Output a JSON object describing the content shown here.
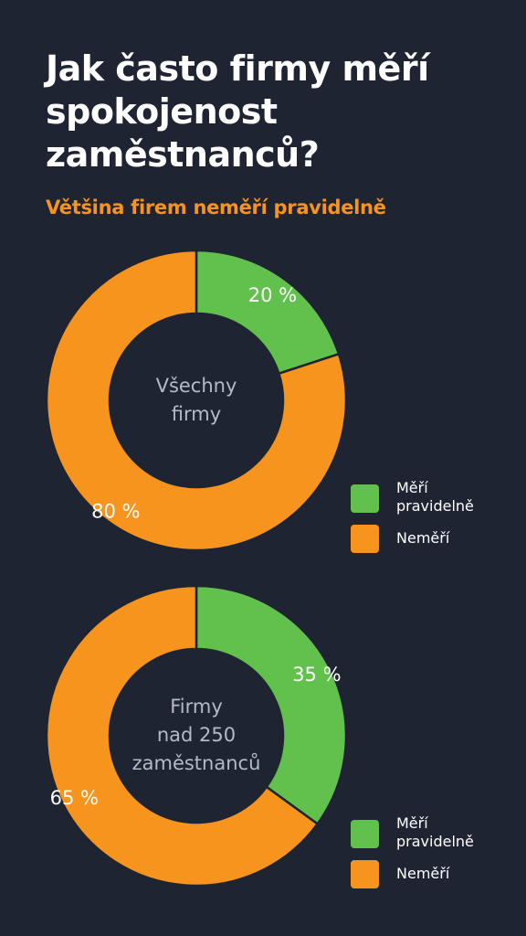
{
  "title": "Jak často firmy měří spokojenost zaměstnanců?",
  "subtitle": "Většina firem neměří pravidelně",
  "colors": {
    "background": "#1f2433",
    "measure_regularly": "#62c14c",
    "not_measure": "#f7941d",
    "center_text": "#b4bac7"
  },
  "chart_data": [
    {
      "type": "pie",
      "center_label": "Všechny\nfirmy",
      "categories": [
        "Měří pravidelně",
        "Neměří"
      ],
      "values": [
        20,
        80
      ],
      "value_labels": [
        "20 %",
        "80 %"
      ],
      "colors": [
        "#62c14c",
        "#f7941d"
      ],
      "legend": {
        "placement": "bottom-right",
        "entries": [
          "Měří\npravidelně",
          "Neměří"
        ]
      }
    },
    {
      "type": "pie",
      "center_label": "Firmy\nnad 250\nzaměstnanců",
      "categories": [
        "Měří pravidelně",
        "Neměří"
      ],
      "values": [
        35,
        65
      ],
      "value_labels": [
        "35 %",
        "65 %"
      ],
      "colors": [
        "#62c14c",
        "#f7941d"
      ],
      "legend": {
        "placement": "bottom-right",
        "entries": [
          "Měří\npravidelně",
          "Neměří"
        ]
      }
    }
  ]
}
